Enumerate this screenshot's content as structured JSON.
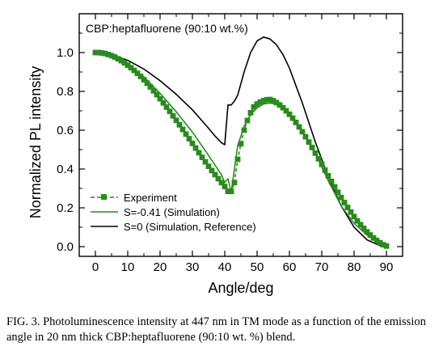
{
  "chart_data": {
    "type": "line",
    "title": "CBP:heptafluorene (90:10 wt.%)",
    "xlabel": "Angle/deg",
    "ylabel": "Normalized PL intensity",
    "xlim": [
      -5,
      95
    ],
    "ylim": [
      -0.05,
      1.2
    ],
    "xticks": [
      0,
      10,
      20,
      30,
      40,
      50,
      60,
      70,
      80,
      90
    ],
    "yticks": [
      0.0,
      0.2,
      0.4,
      0.6,
      0.8,
      1.0
    ],
    "ytick_labels": [
      "0.0",
      "0.2",
      "0.4",
      "0.6",
      "0.8",
      "1.0"
    ],
    "grid": false,
    "legend_position": "bottom-left",
    "series": [
      {
        "name": "Experiment",
        "style": "dashed-square-markers",
        "color": "#2a8a1e",
        "x": [
          0,
          1,
          2,
          3,
          4,
          5,
          6,
          7,
          8,
          9,
          10,
          11,
          12,
          13,
          14,
          15,
          16,
          17,
          18,
          19,
          20,
          21,
          22,
          23,
          24,
          25,
          26,
          27,
          28,
          29,
          30,
          31,
          32,
          33,
          34,
          35,
          36,
          37,
          38,
          39,
          40,
          41,
          42,
          43,
          44,
          45,
          46,
          47,
          48,
          49,
          50,
          51,
          52,
          53,
          54,
          55,
          56,
          57,
          58,
          59,
          60,
          61,
          62,
          63,
          64,
          65,
          66,
          67,
          68,
          69,
          70,
          71,
          72,
          73,
          74,
          75,
          76,
          77,
          78,
          79,
          80,
          81,
          82,
          83,
          84,
          85,
          86,
          87,
          88,
          89,
          90
        ],
        "y": [
          1.0,
          1.0,
          0.998,
          0.995,
          0.99,
          0.984,
          0.977,
          0.968,
          0.958,
          0.947,
          0.935,
          0.922,
          0.908,
          0.893,
          0.877,
          0.86,
          0.842,
          0.823,
          0.803,
          0.783,
          0.762,
          0.741,
          0.719,
          0.697,
          0.674,
          0.651,
          0.628,
          0.604,
          0.58,
          0.556,
          0.532,
          0.508,
          0.484,
          0.46,
          0.437,
          0.414,
          0.392,
          0.371,
          0.35,
          0.33,
          0.31,
          0.285,
          0.285,
          0.33,
          0.45,
          0.53,
          0.6,
          0.65,
          0.69,
          0.72,
          0.735,
          0.745,
          0.752,
          0.757,
          0.758,
          0.752,
          0.742,
          0.73,
          0.716,
          0.7,
          0.682,
          0.662,
          0.64,
          0.617,
          0.592,
          0.566,
          0.539,
          0.511,
          0.482,
          0.453,
          0.424,
          0.394,
          0.365,
          0.336,
          0.308,
          0.28,
          0.253,
          0.227,
          0.202,
          0.178,
          0.155,
          0.133,
          0.113,
          0.094,
          0.076,
          0.06,
          0.045,
          0.032,
          0.02,
          0.01,
          0.003
        ]
      },
      {
        "name": "S=-0.41 (Simulation)",
        "style": "solid",
        "color": "#2a8a1e",
        "x": [
          0,
          5,
          10,
          15,
          20,
          25,
          30,
          35,
          38,
          39,
          40,
          41,
          42,
          44,
          46,
          48,
          50,
          52,
          54,
          56,
          60,
          64,
          68,
          72,
          76,
          80,
          84,
          88,
          90
        ],
        "y": [
          1.0,
          0.985,
          0.94,
          0.875,
          0.79,
          0.695,
          0.59,
          0.47,
          0.395,
          0.37,
          0.33,
          0.35,
          0.28,
          0.52,
          0.62,
          0.68,
          0.715,
          0.735,
          0.74,
          0.735,
          0.69,
          0.6,
          0.48,
          0.34,
          0.21,
          0.12,
          0.06,
          0.02,
          0.0
        ]
      },
      {
        "name": "S=0 (Simulation, Reference)",
        "style": "solid",
        "color": "#000000",
        "x": [
          0,
          5,
          10,
          15,
          20,
          25,
          30,
          35,
          37,
          39,
          40,
          41,
          42,
          43,
          44,
          46,
          48,
          50,
          52,
          54,
          56,
          58,
          60,
          64,
          68,
          72,
          76,
          80,
          84,
          88,
          90
        ],
        "y": [
          1.0,
          0.99,
          0.96,
          0.915,
          0.855,
          0.785,
          0.705,
          0.61,
          0.57,
          0.535,
          0.525,
          0.73,
          0.73,
          0.75,
          0.78,
          0.9,
          1.0,
          1.06,
          1.08,
          1.07,
          1.04,
          0.99,
          0.92,
          0.74,
          0.54,
          0.36,
          0.21,
          0.1,
          0.035,
          0.005,
          0.0
        ]
      }
    ]
  },
  "caption": "FIG. 3. Photoluminescence intensity at 447 nm in TM mode as a function of the emission angle in 20 nm thick CBP:heptafluorene (90:10 wt. %) blend."
}
